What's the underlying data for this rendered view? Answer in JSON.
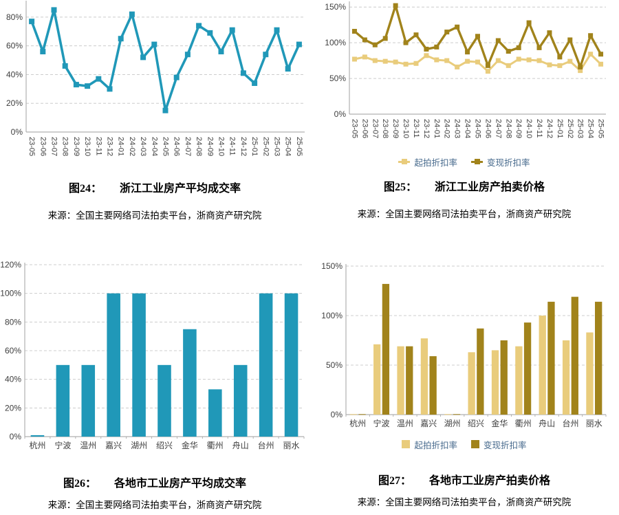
{
  "page": {
    "background": "#ffffff"
  },
  "colors": {
    "teal": "#2098b8",
    "light_gold": "#e9cc7c",
    "dark_gold": "#a1831b",
    "legend_text": "#46698c",
    "grid": "#cccccc",
    "axis": "#b0b0b0",
    "tick_text": "#3d3d3d",
    "caption_text": "#000000"
  },
  "figures": [
    {
      "caption_label": "图24：",
      "caption_title": "浙江工业房产平均成交率",
      "source": "来源：全国主要网络司法拍卖平台，浙商资产研究院"
    },
    {
      "caption_label": "图25：",
      "caption_title": "浙江工业房产拍卖价格",
      "source": "来源：全国主要网络司法拍卖平台，浙商资产研究院"
    },
    {
      "caption_label": "图26：",
      "caption_title": "各地市工业房产平均成交率",
      "source": "来源：全国主要网络司法拍卖平台，浙商资产研究院"
    },
    {
      "caption_label": "图27：",
      "caption_title": "各地市工业房产拍卖价格",
      "source": "来源：全国主要网络司法拍卖平台，浙商资产研究院"
    }
  ],
  "chart_data": [
    {
      "type": "line",
      "title": "浙江工业房产平均成交率",
      "xlabel": "",
      "ylabel": "",
      "x": [
        "23-05",
        "23-06",
        "23-07",
        "23-08",
        "23-09",
        "23-10",
        "23-11",
        "23-12",
        "24-01",
        "24-02",
        "24-03",
        "24-04",
        "24-05",
        "24-06",
        "24-07",
        "24-08",
        "24-09",
        "24-10",
        "24-11",
        "24-12",
        "25-01",
        "25-02",
        "25-03",
        "25-04",
        "25-05"
      ],
      "series": [
        {
          "name": "",
          "color": "#2098b8",
          "values": [
            77,
            56,
            85,
            46,
            33,
            32,
            37,
            30,
            65,
            82,
            52,
            61,
            15,
            38,
            54,
            74,
            69,
            56,
            71,
            41,
            34,
            54,
            71,
            44,
            61
          ]
        }
      ],
      "yticks": [
        0,
        20,
        40,
        60,
        80
      ],
      "ylim": [
        0,
        90
      ],
      "grid": "dashed-horizontal",
      "legend": false
    },
    {
      "type": "line",
      "title": "浙江工业房产拍卖价格",
      "xlabel": "",
      "ylabel": "",
      "x": [
        "23-05",
        "23-06",
        "23-07",
        "23-08",
        "23-09",
        "23-10",
        "23-11",
        "23-12",
        "24-01",
        "24-02",
        "24-03",
        "24-04",
        "24-05",
        "24-06",
        "24-07",
        "24-08",
        "24-09",
        "24-10",
        "24-11",
        "24-12",
        "25-01",
        "25-02",
        "25-03",
        "25-04",
        "25-05"
      ],
      "series": [
        {
          "name": "起拍折扣率",
          "color": "#e9cc7c",
          "values": [
            77,
            80,
            75,
            74,
            73,
            70,
            71,
            82,
            76,
            75,
            66,
            74,
            73,
            60,
            75,
            68,
            77,
            76,
            75,
            69,
            68,
            74,
            61,
            84,
            70
          ]
        },
        {
          "name": "变现折扣率",
          "color": "#a1831b",
          "values": [
            116,
            104,
            97,
            106,
            152,
            100,
            111,
            91,
            94,
            115,
            122,
            87,
            109,
            68,
            103,
            88,
            93,
            128,
            93,
            114,
            80,
            104,
            66,
            110,
            84
          ]
        }
      ],
      "yticks": [
        0,
        50,
        100,
        150
      ],
      "ylim": [
        0,
        155
      ],
      "grid": "dashed-horizontal",
      "legend": "bottom"
    },
    {
      "type": "bar",
      "title": "各地市工业房产平均成交率",
      "xlabel": "",
      "ylabel": "",
      "x": [
        "杭州",
        "宁波",
        "温州",
        "嘉兴",
        "湖州",
        "绍兴",
        "金华",
        "衢州",
        "舟山",
        "台州",
        "丽水"
      ],
      "series": [
        {
          "name": "",
          "color": "#2098b8",
          "values": [
            1,
            50,
            50,
            100,
            100,
            50,
            75,
            33,
            50,
            100,
            100
          ]
        }
      ],
      "yticks": [
        0,
        20,
        40,
        60,
        80,
        100,
        120
      ],
      "ylim": [
        0,
        120
      ],
      "grid": "dashed-horizontal",
      "legend": false
    },
    {
      "type": "bar",
      "title": "各地市工业房产拍卖价格",
      "xlabel": "",
      "ylabel": "",
      "x": [
        "杭州",
        "宁波",
        "温州",
        "嘉兴",
        "湖州",
        "绍兴",
        "金华",
        "衢州",
        "舟山",
        "台州",
        "丽水"
      ],
      "series": [
        {
          "name": "起拍折扣率",
          "color": "#e9cc7c",
          "values": [
            0.5,
            71,
            69,
            77,
            0.5,
            63,
            65,
            69,
            100,
            75,
            83
          ]
        },
        {
          "name": "变现折扣率",
          "color": "#a1831b",
          "values": [
            0.5,
            132,
            69,
            59,
            0.5,
            87,
            75,
            93,
            114,
            119,
            114
          ]
        }
      ],
      "yticks": [
        0,
        50,
        100,
        150
      ],
      "ylim": [
        0,
        150
      ],
      "grid": "dashed-horizontal",
      "legend": "bottom"
    }
  ]
}
